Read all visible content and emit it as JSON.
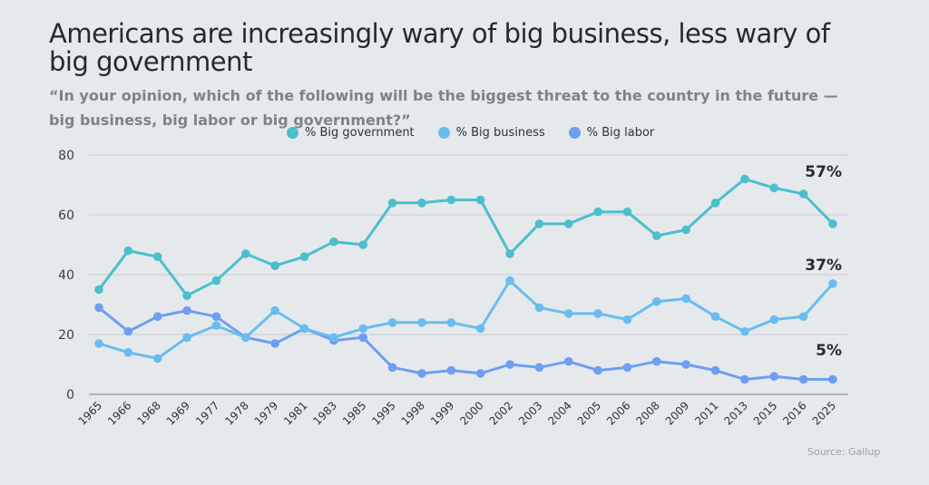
{
  "chart_data": {
    "type": "line",
    "title": "Americans are increasingly wary of big business, less wary of big government",
    "subtitle": "“In your opinion, which of the following will be the biggest threat to the country in the future — big business, big labor or big government?”",
    "xlabel": "",
    "ylabel": "",
    "ylim": [
      0,
      80
    ],
    "yticks": [
      0,
      20,
      40,
      60,
      80
    ],
    "grid": true,
    "legend_position": "top-center",
    "categories": [
      "1965",
      "1966",
      "1968",
      "1969",
      "1977",
      "1978",
      "1979",
      "1981",
      "1983",
      "1985",
      "1995",
      "1998",
      "1999",
      "2000",
      "2002",
      "2003",
      "2004",
      "2005",
      "2006",
      "2008",
      "2009",
      "2011",
      "2013",
      "2015",
      "2016",
      "2025"
    ],
    "series": [
      {
        "name": "% Big government",
        "color": "#4bbfcc",
        "end_label": "57%",
        "values": [
          35,
          48,
          46,
          33,
          38,
          47,
          43,
          46,
          51,
          50,
          64,
          64,
          65,
          65,
          47,
          57,
          57,
          61,
          61,
          53,
          55,
          64,
          72,
          69,
          67,
          57
        ]
      },
      {
        "name": "% Big business",
        "color": "#68bdf0",
        "end_label": "37%",
        "values": [
          17,
          14,
          12,
          19,
          23,
          19,
          28,
          22,
          19,
          22,
          24,
          24,
          24,
          22,
          38,
          29,
          27,
          27,
          25,
          31,
          32,
          26,
          21,
          25,
          26,
          37
        ]
      },
      {
        "name": "% Big labor",
        "color": "#6e9ef2",
        "end_label": "5%",
        "values": [
          29,
          21,
          26,
          28,
          26,
          19,
          17,
          22,
          18,
          19,
          9,
          7,
          8,
          7,
          10,
          9,
          11,
          8,
          9,
          11,
          10,
          8,
          5,
          6,
          5,
          5
        ]
      }
    ],
    "source": "Source:  Gallup"
  }
}
